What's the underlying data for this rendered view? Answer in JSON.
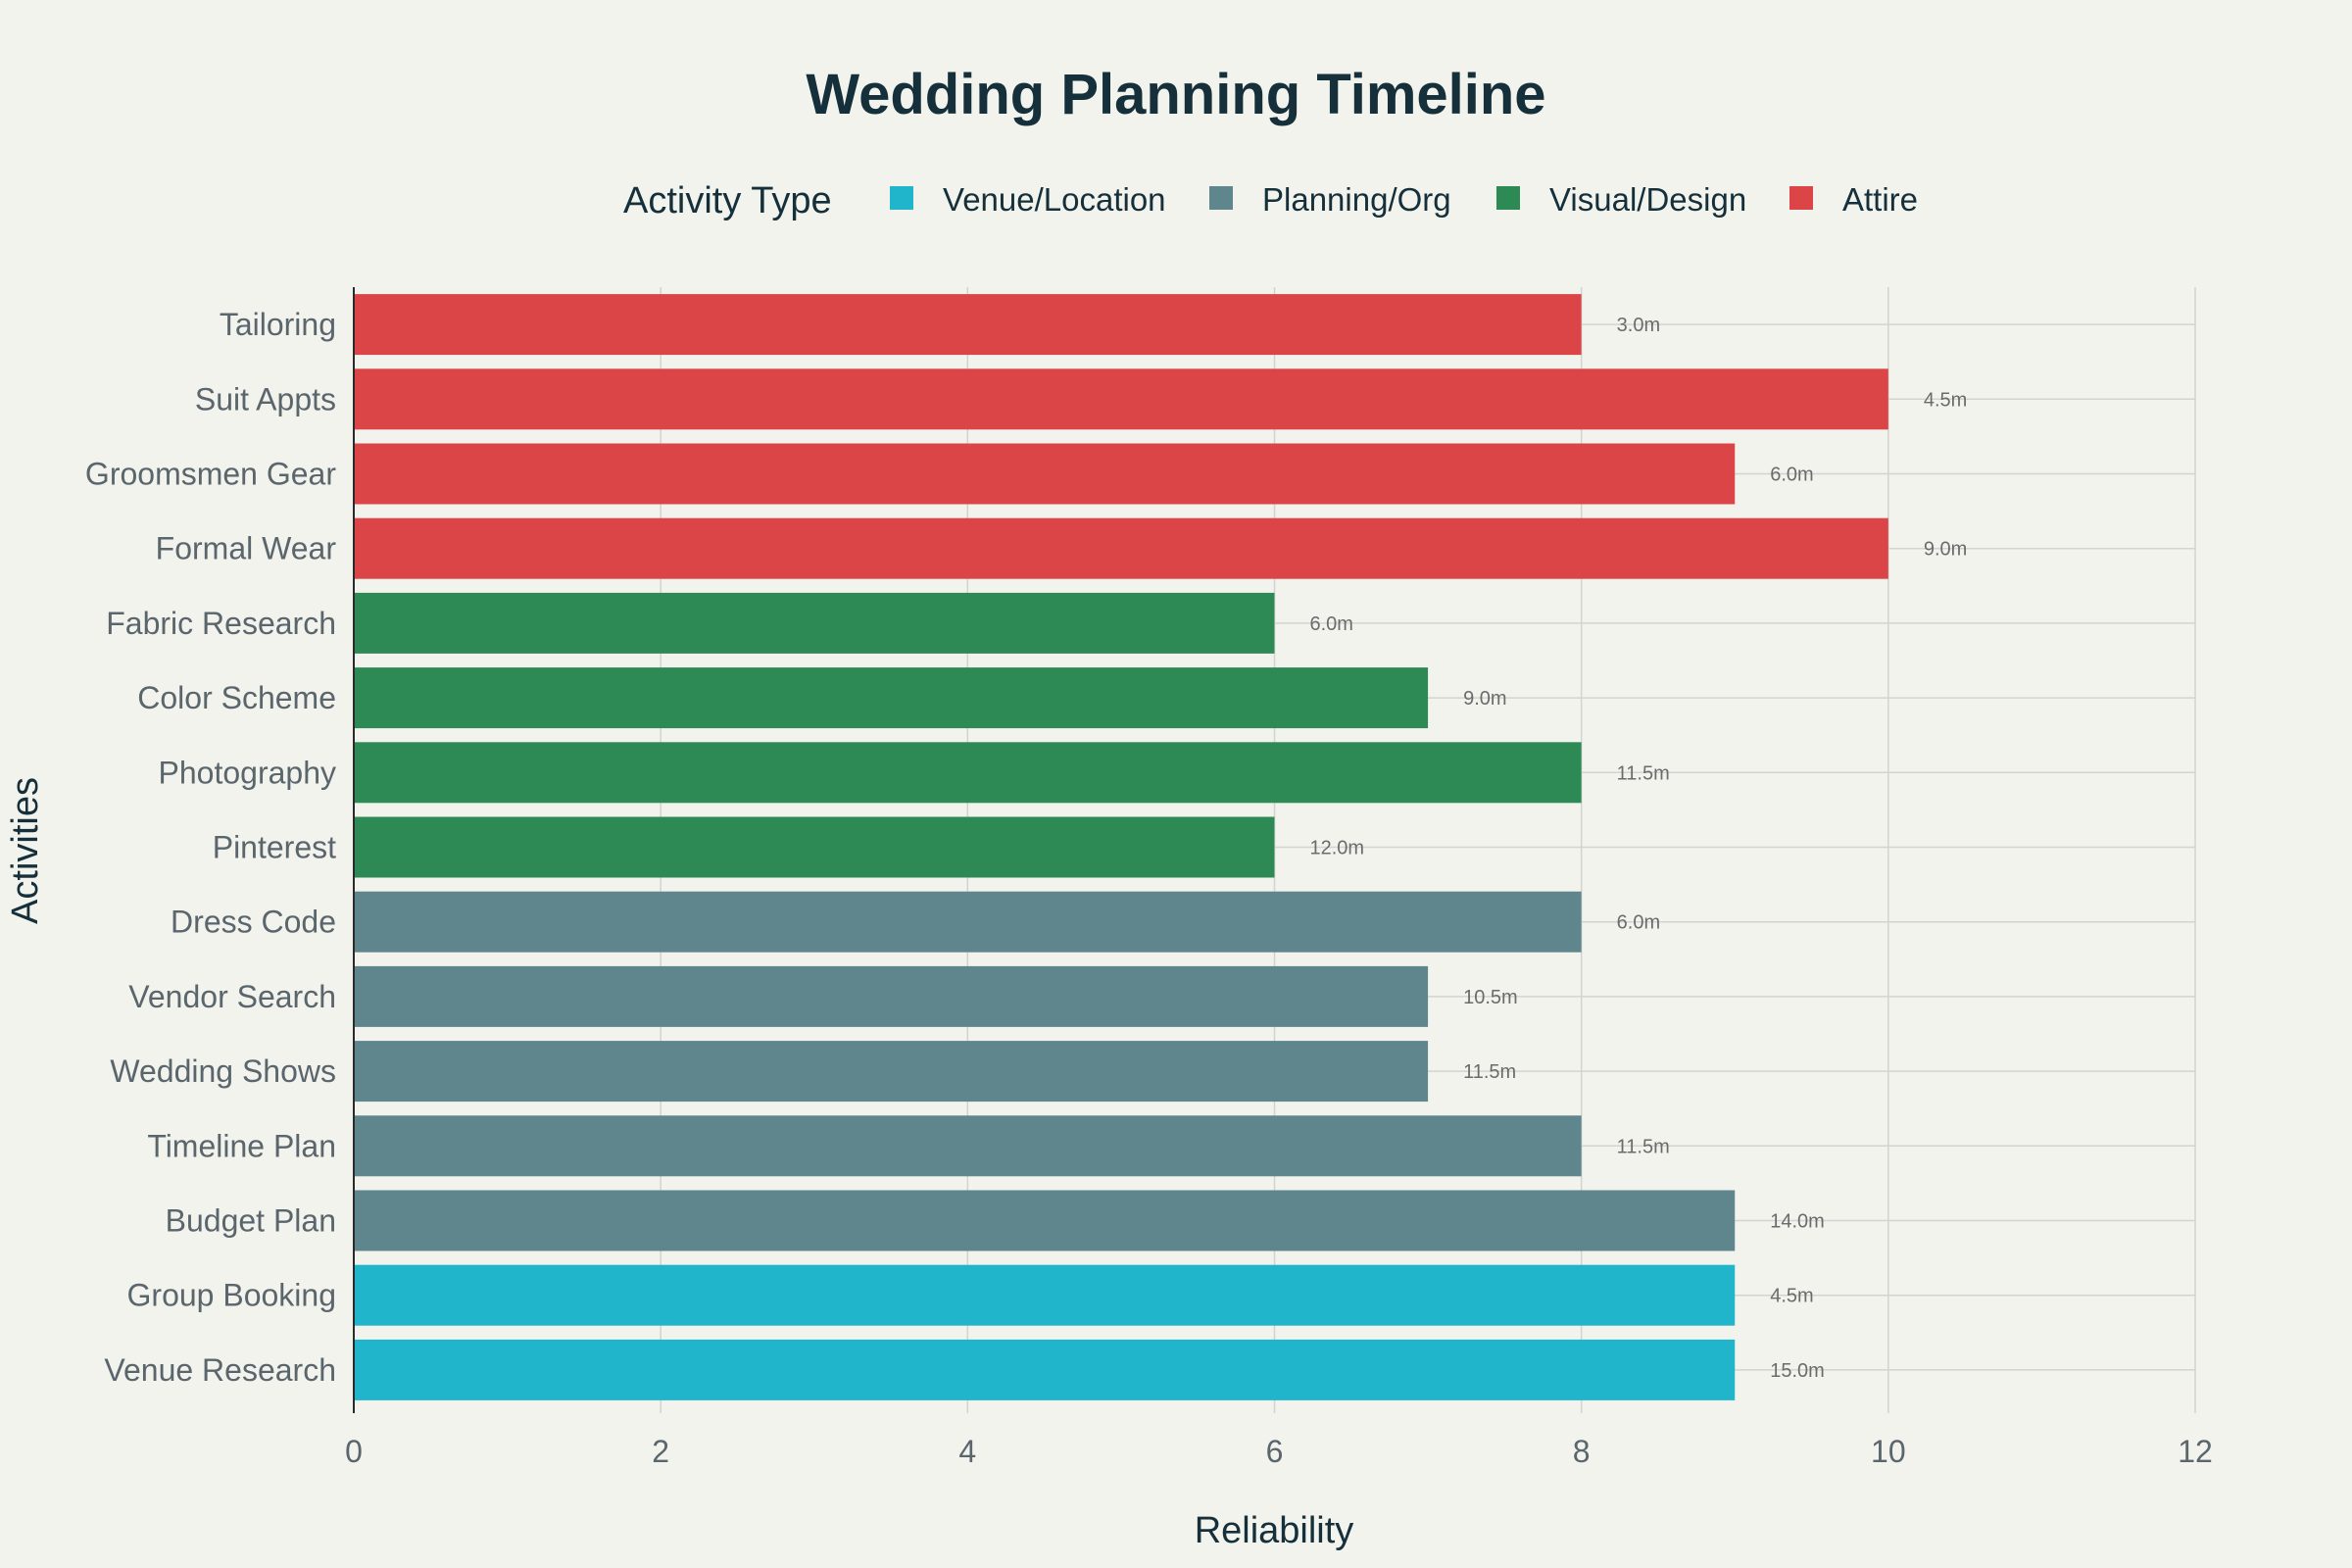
{
  "chart_data": {
    "type": "bar",
    "orientation": "horizontal",
    "title": "Wedding Planning Timeline",
    "xlabel": "Reliability",
    "ylabel": "Activities",
    "xlim": [
      0,
      12
    ],
    "xticks": [
      0,
      2,
      4,
      6,
      8,
      10,
      12
    ],
    "grid": true,
    "legend": {
      "title": "Activity Type",
      "placement": "top",
      "entries": [
        {
          "name": "Venue/Location",
          "color": "#21b5cc"
        },
        {
          "name": "Planning/Org",
          "color": "#5f868d"
        },
        {
          "name": "Visual/Design",
          "color": "#2e8a55"
        },
        {
          "name": "Attire",
          "color": "#db4547"
        }
      ]
    },
    "bars": [
      {
        "category": "Tailoring",
        "value": 8,
        "type": "Attire",
        "label": "3.0m"
      },
      {
        "category": "Suit Appts",
        "value": 10,
        "type": "Attire",
        "label": "4.5m"
      },
      {
        "category": "Groomsmen Gear",
        "value": 9,
        "type": "Attire",
        "label": "6.0m"
      },
      {
        "category": "Formal Wear",
        "value": 10,
        "type": "Attire",
        "label": "9.0m"
      },
      {
        "category": "Fabric Research",
        "value": 6,
        "type": "Visual/Design",
        "label": "6.0m"
      },
      {
        "category": "Color Scheme",
        "value": 7,
        "type": "Visual/Design",
        "label": "9.0m"
      },
      {
        "category": "Photography",
        "value": 8,
        "type": "Visual/Design",
        "label": "11.5m"
      },
      {
        "category": "Pinterest",
        "value": 6,
        "type": "Visual/Design",
        "label": "12.0m"
      },
      {
        "category": "Dress Code",
        "value": 8,
        "type": "Planning/Org",
        "label": "6.0m"
      },
      {
        "category": "Vendor Search",
        "value": 7,
        "type": "Planning/Org",
        "label": "10.5m"
      },
      {
        "category": "Wedding Shows",
        "value": 7,
        "type": "Planning/Org",
        "label": "11.5m"
      },
      {
        "category": "Timeline Plan",
        "value": 8,
        "type": "Planning/Org",
        "label": "11.5m"
      },
      {
        "category": "Budget Plan",
        "value": 9,
        "type": "Planning/Org",
        "label": "14.0m"
      },
      {
        "category": "Group Booking",
        "value": 9,
        "type": "Venue/Location",
        "label": "4.5m"
      },
      {
        "category": "Venue Research",
        "value": 9,
        "type": "Venue/Location",
        "label": "15.0m"
      }
    ]
  }
}
